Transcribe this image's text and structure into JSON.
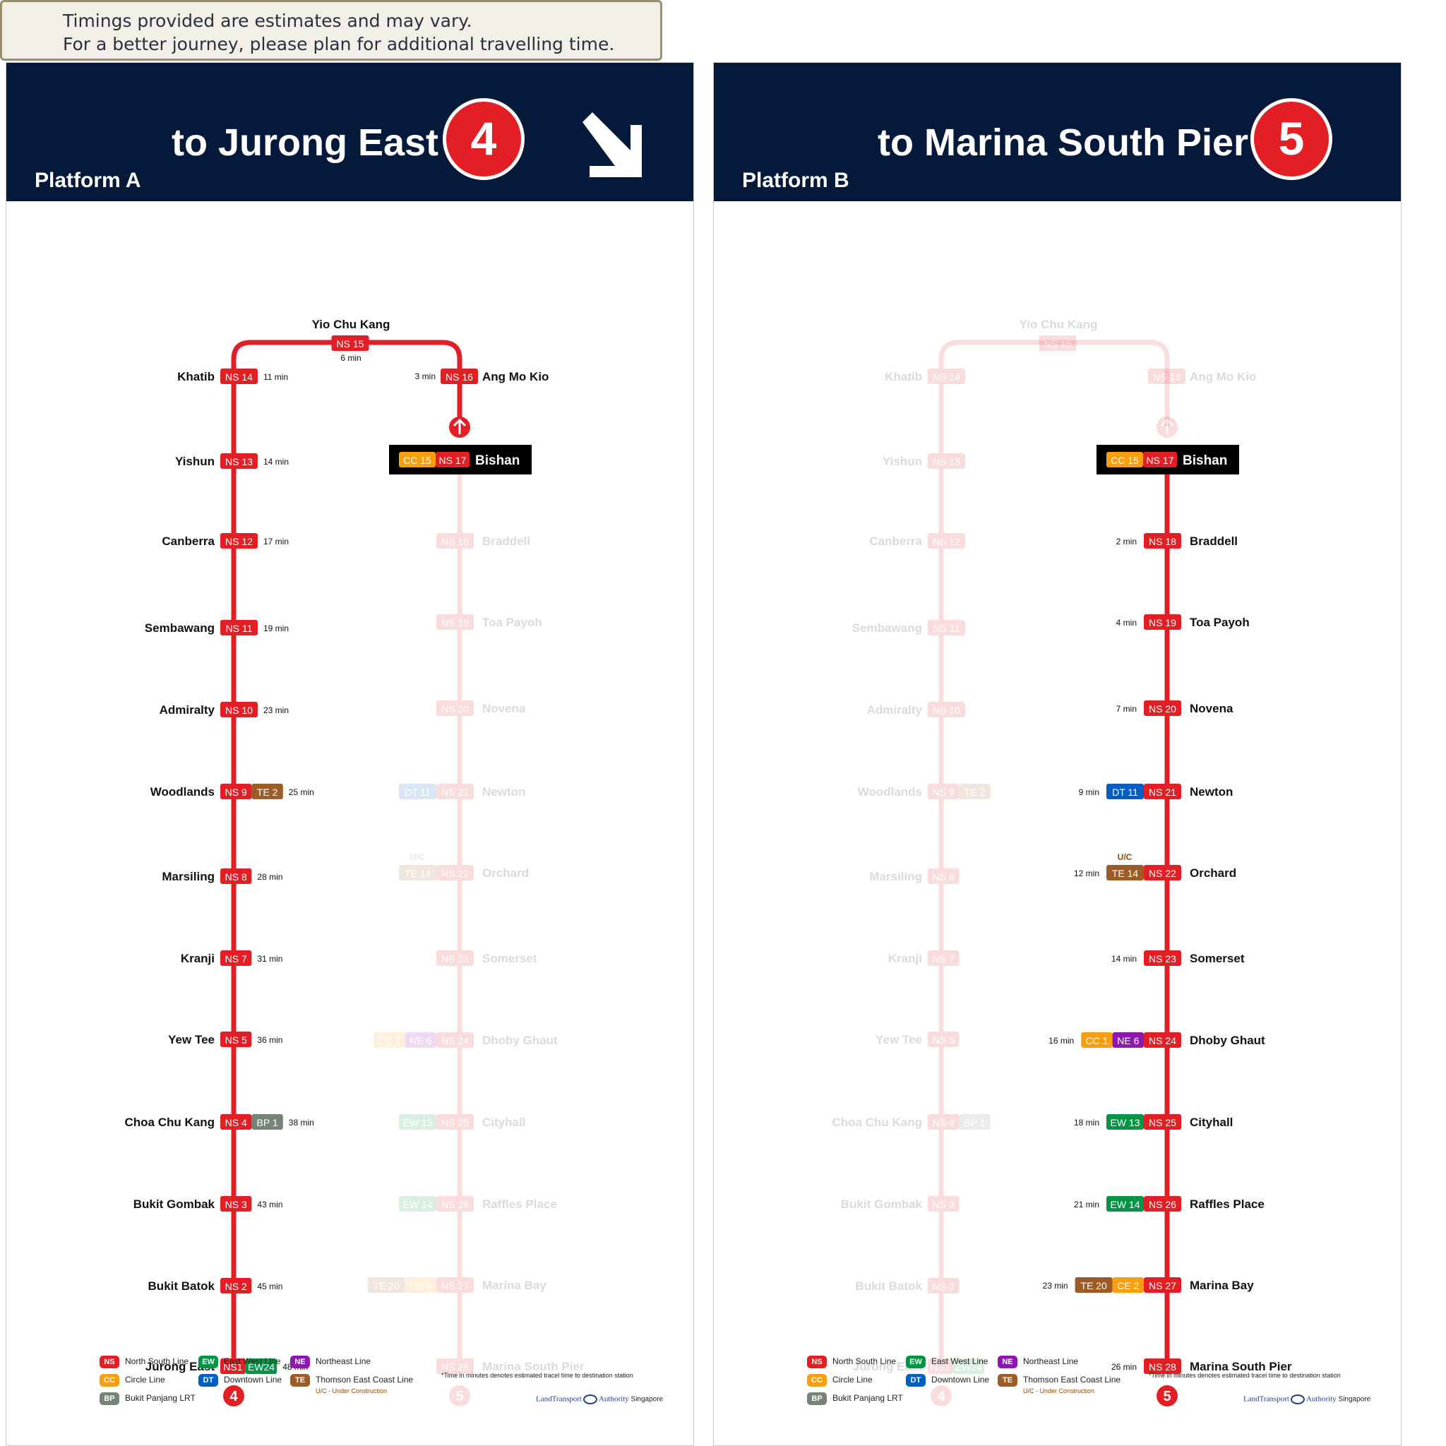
{
  "notice": {
    "line1": "Timings provided are estimates and may vary.",
    "line2": "For a better journey, please plan for additional travelling time."
  },
  "colors": {
    "header_bg": "#051a3b",
    "NS": "#e31e24",
    "EW": "#009645",
    "NE": "#9016b2",
    "CC": "#fa9e0d",
    "DT": "#005ec4",
    "TE": "#9d5b25",
    "BP": "#748477",
    "CE": "#fa9e0d"
  },
  "stations": [
    {
      "name": "Khatib",
      "codes": [
        {
          "line": "NS",
          "label": "NS 14"
        }
      ],
      "timeA": "11 min",
      "timeB": ""
    },
    {
      "name": "Yishun",
      "codes": [
        {
          "line": "NS",
          "label": "NS 13"
        }
      ],
      "timeA": "14 min",
      "timeB": ""
    },
    {
      "name": "Canberra",
      "codes": [
        {
          "line": "NS",
          "label": "NS 12"
        }
      ],
      "timeA": "17 min",
      "timeB": ""
    },
    {
      "name": "Sembawang",
      "codes": [
        {
          "line": "NS",
          "label": "NS 11"
        }
      ],
      "timeA": "19 min",
      "timeB": ""
    },
    {
      "name": "Admiralty",
      "codes": [
        {
          "line": "NS",
          "label": "NS 10"
        }
      ],
      "timeA": "23 min",
      "timeB": ""
    },
    {
      "name": "Woodlands",
      "codes": [
        {
          "line": "NS",
          "label": "NS 9"
        },
        {
          "line": "TE",
          "label": "TE 2"
        }
      ],
      "timeA": "25 min",
      "timeB": ""
    },
    {
      "name": "Marsiling",
      "codes": [
        {
          "line": "NS",
          "label": "NS 8"
        }
      ],
      "timeA": "28 min",
      "timeB": ""
    },
    {
      "name": "Kranji",
      "codes": [
        {
          "line": "NS",
          "label": "NS 7"
        }
      ],
      "timeA": "31 min",
      "timeB": ""
    },
    {
      "name": "Yew Tee",
      "codes": [
        {
          "line": "NS",
          "label": "NS 5"
        }
      ],
      "timeA": "36 min",
      "timeB": ""
    },
    {
      "name": "Choa Chu Kang",
      "codes": [
        {
          "line": "NS",
          "label": "NS 4"
        },
        {
          "line": "BP",
          "label": "BP 1"
        }
      ],
      "timeA": "38 min",
      "timeB": ""
    },
    {
      "name": "Bukit Gombak",
      "codes": [
        {
          "line": "NS",
          "label": "NS 3"
        }
      ],
      "timeA": "43 min",
      "timeB": ""
    },
    {
      "name": "Bukit Batok",
      "codes": [
        {
          "line": "NS",
          "label": "NS 2"
        }
      ],
      "timeA": "45 min",
      "timeB": ""
    },
    {
      "name": "Jurong East",
      "codes": [
        {
          "line": "NS",
          "label": "NS1"
        },
        {
          "line": "EW",
          "label": "EW24"
        }
      ],
      "timeA": "48 min",
      "timeB": ""
    }
  ],
  "right_stations": [
    {
      "name": "Braddell",
      "codes": [
        {
          "line": "NS",
          "label": "NS 18"
        }
      ],
      "timeA": "",
      "timeB": "2 min"
    },
    {
      "name": "Toa Payoh",
      "codes": [
        {
          "line": "NS",
          "label": "NS 19"
        }
      ],
      "timeA": "",
      "timeB": "4 min"
    },
    {
      "name": "Novena",
      "codes": [
        {
          "line": "NS",
          "label": "NS 20"
        }
      ],
      "timeA": "",
      "timeB": "7 min"
    },
    {
      "name": "Newton",
      "codes": [
        {
          "line": "DT",
          "label": "DT 11"
        },
        {
          "line": "NS",
          "label": "NS 21"
        }
      ],
      "timeA": "",
      "timeB": "9 min"
    },
    {
      "name": "Orchard",
      "codes": [
        {
          "line": "TE",
          "label": "TE 14"
        },
        {
          "line": "NS",
          "label": "NS 22"
        }
      ],
      "timeA": "",
      "timeB": "12 min",
      "uc": "U/C"
    },
    {
      "name": "Somerset",
      "codes": [
        {
          "line": "NS",
          "label": "NS 23"
        }
      ],
      "timeA": "",
      "timeB": "14 min"
    },
    {
      "name": "Dhoby Ghaut",
      "codes": [
        {
          "line": "CC",
          "label": "CC 1"
        },
        {
          "line": "NE",
          "label": "NE 6"
        },
        {
          "line": "NS",
          "label": "NS 24"
        }
      ],
      "timeA": "",
      "timeB": "16 min"
    },
    {
      "name": "Cityhall",
      "codes": [
        {
          "line": "EW",
          "label": "EW 13"
        },
        {
          "line": "NS",
          "label": "NS 25"
        }
      ],
      "timeA": "",
      "timeB": "18 min"
    },
    {
      "name": "Raffles Place",
      "codes": [
        {
          "line": "EW",
          "label": "EW 14"
        },
        {
          "line": "NS",
          "label": "NS 26"
        }
      ],
      "timeA": "",
      "timeB": "21 min"
    },
    {
      "name": "Marina Bay",
      "codes": [
        {
          "line": "TE",
          "label": "TE 20"
        },
        {
          "line": "CE",
          "label": "CE 2"
        },
        {
          "line": "NS",
          "label": "NS 27"
        }
      ],
      "timeA": "",
      "timeB": "23 min"
    },
    {
      "name": "Marina South Pier",
      "codes": [
        {
          "line": "NS",
          "label": "NS 28"
        }
      ],
      "timeA": "",
      "timeB": "26 min"
    }
  ],
  "top": {
    "yck": {
      "name": "Yio Chu Kang",
      "code": "NS 15",
      "timeA": "6 min"
    },
    "amk": {
      "name": "Ang Mo Kio",
      "code": "NS 16",
      "timeA": "3 min"
    },
    "bishan": {
      "name": "Bishan",
      "cc": "CC 15",
      "ns": "NS 17"
    }
  },
  "endpoints": {
    "left": "4",
    "right": "5"
  },
  "panels": [
    {
      "dest": "to Jurong East",
      "platform": "Platform A",
      "number": "4"
    },
    {
      "dest": "to Marina South Pier",
      "platform": "Platform B",
      "number": "5"
    }
  ],
  "legend": {
    "items": [
      {
        "code": "NS",
        "label": "North South Line"
      },
      {
        "code": "EW",
        "label": "East West Line"
      },
      {
        "code": "NE",
        "label": "Northeast Line"
      },
      {
        "code": "CC",
        "label": "Circle Line"
      },
      {
        "code": "DT",
        "label": "Downtown Line"
      },
      {
        "code": "TE",
        "label": "Thomson East Coast Line"
      },
      {
        "code": "BP",
        "label": "Bukit Panjang LRT"
      }
    ],
    "uc": "U/C - Under Construction",
    "note": "*Time in minutes denotes estimated tracel time to destination station",
    "lta_left": "LandTransport",
    "lta_right": "Authority",
    "lta_country": "Singapore"
  }
}
